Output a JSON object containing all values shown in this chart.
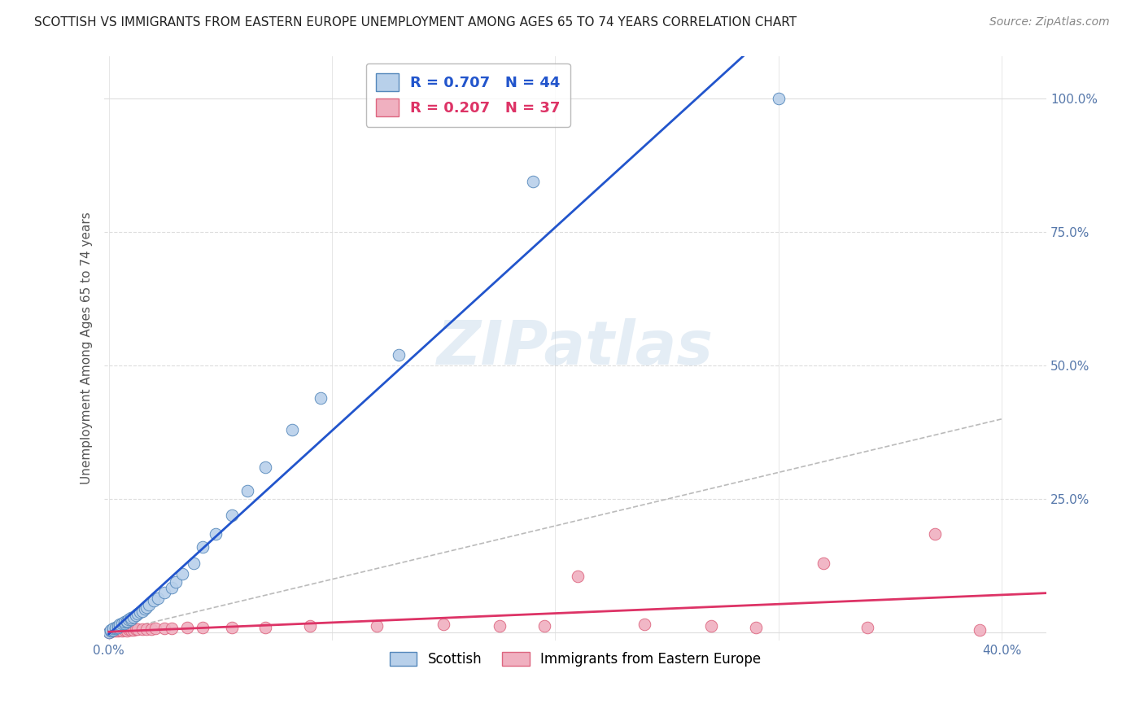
{
  "title": "SCOTTISH VS IMMIGRANTS FROM EASTERN EUROPE UNEMPLOYMENT AMONG AGES 65 TO 74 YEARS CORRELATION CHART",
  "source": "Source: ZipAtlas.com",
  "ylabel": "Unemployment Among Ages 65 to 74 years",
  "xlim": [
    -0.002,
    0.42
  ],
  "ylim": [
    -0.015,
    1.08
  ],
  "xticks": [
    0.0,
    0.1,
    0.2,
    0.3,
    0.4
  ],
  "xticklabels": [
    "0.0%",
    "",
    "",
    "",
    "40.0%"
  ],
  "yticks": [
    0.0,
    0.25,
    0.5,
    0.75,
    1.0
  ],
  "yticklabels": [
    "",
    "25.0%",
    "50.0%",
    "75.0%",
    "100.0%"
  ],
  "watermark": "ZIPatlas",
  "scottish_R": 0.707,
  "scottish_N": 44,
  "eastern_R": 0.207,
  "eastern_N": 37,
  "scottish_color": "#b8d0ea",
  "scottish_edge": "#5588bb",
  "eastern_color": "#f0b0c0",
  "eastern_edge": "#dd6680",
  "regression_blue": "#2255cc",
  "regression_pink": "#dd3366",
  "diagonal_color": "#bbbbbb",
  "background": "#ffffff",
  "grid_color": "#dddddd",
  "scottish_x": [
    0.0,
    0.001,
    0.001,
    0.002,
    0.002,
    0.003,
    0.003,
    0.004,
    0.004,
    0.005,
    0.005,
    0.006,
    0.007,
    0.007,
    0.008,
    0.008,
    0.009,
    0.01,
    0.01,
    0.011,
    0.012,
    0.013,
    0.014,
    0.015,
    0.016,
    0.017,
    0.018,
    0.02,
    0.022,
    0.025,
    0.028,
    0.03,
    0.033,
    0.038,
    0.042,
    0.048,
    0.055,
    0.062,
    0.07,
    0.082,
    0.095,
    0.13,
    0.19,
    0.3
  ],
  "scottish_y": [
    0.0,
    0.003,
    0.005,
    0.005,
    0.008,
    0.008,
    0.01,
    0.01,
    0.012,
    0.012,
    0.015,
    0.018,
    0.018,
    0.02,
    0.02,
    0.022,
    0.025,
    0.025,
    0.028,
    0.03,
    0.032,
    0.035,
    0.038,
    0.04,
    0.045,
    0.048,
    0.052,
    0.06,
    0.065,
    0.075,
    0.085,
    0.095,
    0.11,
    0.13,
    0.16,
    0.185,
    0.22,
    0.265,
    0.31,
    0.38,
    0.44,
    0.52,
    0.845,
    1.0
  ],
  "eastern_x": [
    0.0,
    0.001,
    0.002,
    0.003,
    0.004,
    0.005,
    0.006,
    0.007,
    0.008,
    0.009,
    0.01,
    0.011,
    0.012,
    0.013,
    0.015,
    0.017,
    0.019,
    0.021,
    0.025,
    0.028,
    0.035,
    0.042,
    0.055,
    0.07,
    0.09,
    0.12,
    0.15,
    0.175,
    0.195,
    0.21,
    0.24,
    0.27,
    0.29,
    0.32,
    0.34,
    0.37,
    0.39
  ],
  "eastern_y": [
    0.0,
    0.002,
    0.003,
    0.004,
    0.003,
    0.005,
    0.004,
    0.005,
    0.004,
    0.006,
    0.005,
    0.005,
    0.006,
    0.007,
    0.006,
    0.007,
    0.006,
    0.008,
    0.008,
    0.008,
    0.01,
    0.01,
    0.01,
    0.01,
    0.012,
    0.013,
    0.015,
    0.013,
    0.013,
    0.105,
    0.015,
    0.012,
    0.01,
    0.13,
    0.01,
    0.185,
    0.005
  ]
}
